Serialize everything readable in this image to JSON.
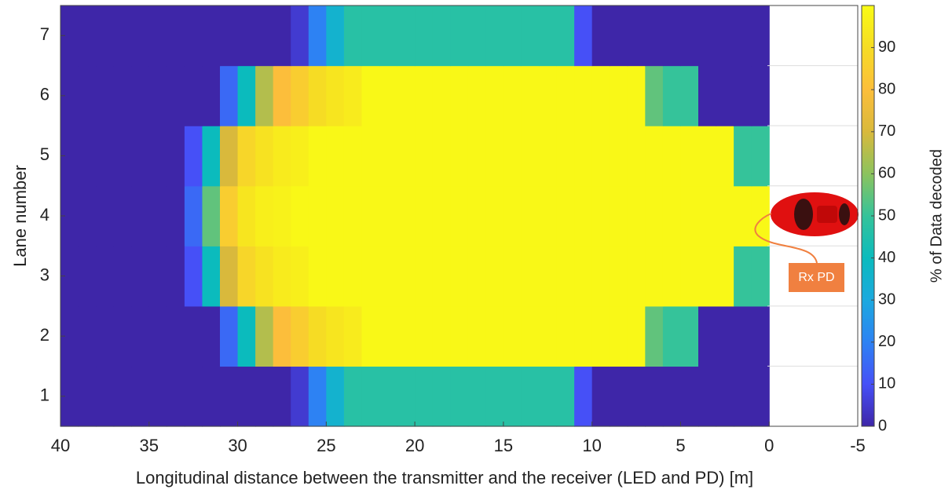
{
  "chart_data": {
    "type": "heatmap",
    "xlabel": "Longitudinal distance between the transmitter and the receiver (LED and PD) [m]",
    "ylabel": "Lane number",
    "colorbar_label": "% of Data decoded",
    "annotation": "Rx PD",
    "bins": [
      40,
      39,
      38,
      37,
      36,
      35,
      34,
      33,
      32,
      31,
      30,
      29,
      28,
      27,
      26,
      25,
      24,
      23,
      22,
      21,
      20,
      19,
      18,
      17,
      16,
      15,
      14,
      13,
      12,
      11,
      10,
      9,
      8,
      7,
      6,
      5,
      4,
      3,
      2,
      1,
      0
    ],
    "y": [
      1,
      2,
      3,
      4,
      5,
      6,
      7
    ],
    "z": [
      [
        0,
        0,
        0,
        0,
        0,
        0,
        0,
        0,
        0,
        0,
        0,
        0,
        0,
        5,
        20,
        35,
        47,
        47,
        47,
        47,
        47,
        47,
        47,
        47,
        47,
        47,
        47,
        47,
        47,
        10,
        0,
        0,
        0,
        0,
        0,
        0,
        0,
        0,
        0,
        0
      ],
      [
        0,
        0,
        0,
        0,
        0,
        0,
        0,
        0,
        0,
        15,
        40,
        65,
        80,
        85,
        90,
        93,
        95,
        99,
        99,
        99,
        99,
        99,
        99,
        99,
        99,
        99,
        99,
        99,
        99,
        99,
        99,
        99,
        99,
        55,
        50,
        50,
        0,
        0,
        0,
        0
      ],
      [
        0,
        0,
        0,
        0,
        0,
        0,
        0,
        10,
        40,
        70,
        88,
        92,
        95,
        96,
        99,
        99,
        99,
        99,
        99,
        99,
        99,
        99,
        99,
        99,
        99,
        99,
        99,
        99,
        99,
        99,
        99,
        99,
        99,
        99,
        99,
        99,
        99,
        99,
        50,
        50
      ],
      [
        0,
        0,
        0,
        0,
        0,
        0,
        0,
        15,
        55,
        85,
        93,
        96,
        97,
        99,
        99,
        99,
        99,
        99,
        99,
        99,
        99,
        99,
        99,
        99,
        99,
        99,
        99,
        99,
        99,
        99,
        99,
        99,
        99,
        99,
        99,
        99,
        99,
        99,
        99,
        99
      ],
      [
        0,
        0,
        0,
        0,
        0,
        0,
        0,
        10,
        40,
        70,
        88,
        92,
        95,
        96,
        99,
        99,
        99,
        99,
        99,
        99,
        99,
        99,
        99,
        99,
        99,
        99,
        99,
        99,
        99,
        99,
        99,
        99,
        99,
        99,
        99,
        99,
        99,
        99,
        50,
        50
      ],
      [
        0,
        0,
        0,
        0,
        0,
        0,
        0,
        0,
        0,
        15,
        40,
        65,
        80,
        85,
        90,
        93,
        95,
        99,
        99,
        99,
        99,
        99,
        99,
        99,
        99,
        99,
        99,
        99,
        99,
        99,
        99,
        99,
        99,
        55,
        50,
        50,
        0,
        0,
        0,
        0
      ],
      [
        0,
        0,
        0,
        0,
        0,
        0,
        0,
        0,
        0,
        0,
        0,
        0,
        0,
        5,
        20,
        35,
        47,
        47,
        47,
        47,
        47,
        47,
        47,
        47,
        47,
        47,
        47,
        47,
        47,
        10,
        0,
        0,
        0,
        0,
        0,
        0,
        0,
        0,
        0,
        0
      ]
    ],
    "xlim": [
      40,
      -5
    ],
    "xticks": [
      40,
      35,
      30,
      25,
      20,
      15,
      10,
      5,
      0,
      -5
    ],
    "ylim": [
      0.5,
      7.5
    ],
    "yticks": [
      1,
      2,
      3,
      4,
      5,
      6,
      7
    ],
    "clim": [
      0,
      100
    ],
    "cticks": [
      0,
      10,
      20,
      30,
      40,
      50,
      60,
      70,
      80,
      90
    ]
  }
}
